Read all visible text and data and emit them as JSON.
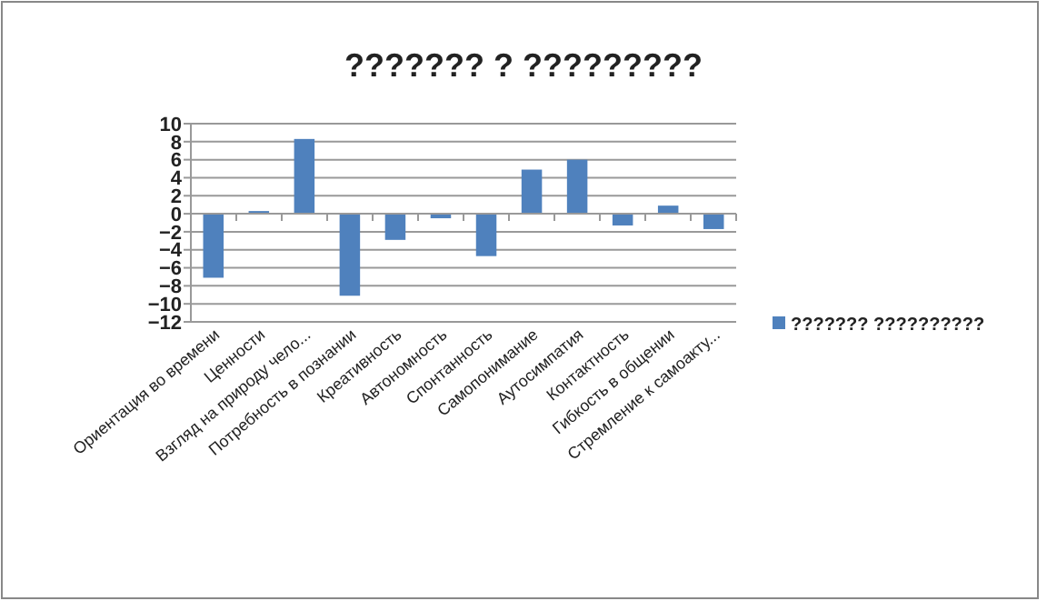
{
  "chart_data": {
    "type": "bar",
    "title": "??????? ? ?????????",
    "categories": [
      "Ориентация во времени",
      "Ценности",
      "Взгляд на природу чело...",
      "Потребность в познании",
      "Креативность",
      "Автономность",
      "Спонтанность",
      "Самопонимание",
      "Аутосимпатия",
      "Контактность",
      "Гибкость в общении",
      "Стремление к самоакту..."
    ],
    "series": [
      {
        "name": "??????? ??????????",
        "color": "#4f81bd",
        "values": [
          -7.1,
          0.3,
          8.3,
          -9.1,
          -2.9,
          -0.5,
          -4.7,
          4.9,
          6.0,
          -1.3,
          0.9,
          -1.7
        ]
      }
    ],
    "ylim": [
      -12,
      10
    ],
    "yticks": [
      -12,
      -10,
      -8,
      -6,
      -4,
      -2,
      0,
      2,
      4,
      6,
      8,
      10
    ],
    "grid": "y",
    "legend": "right"
  }
}
